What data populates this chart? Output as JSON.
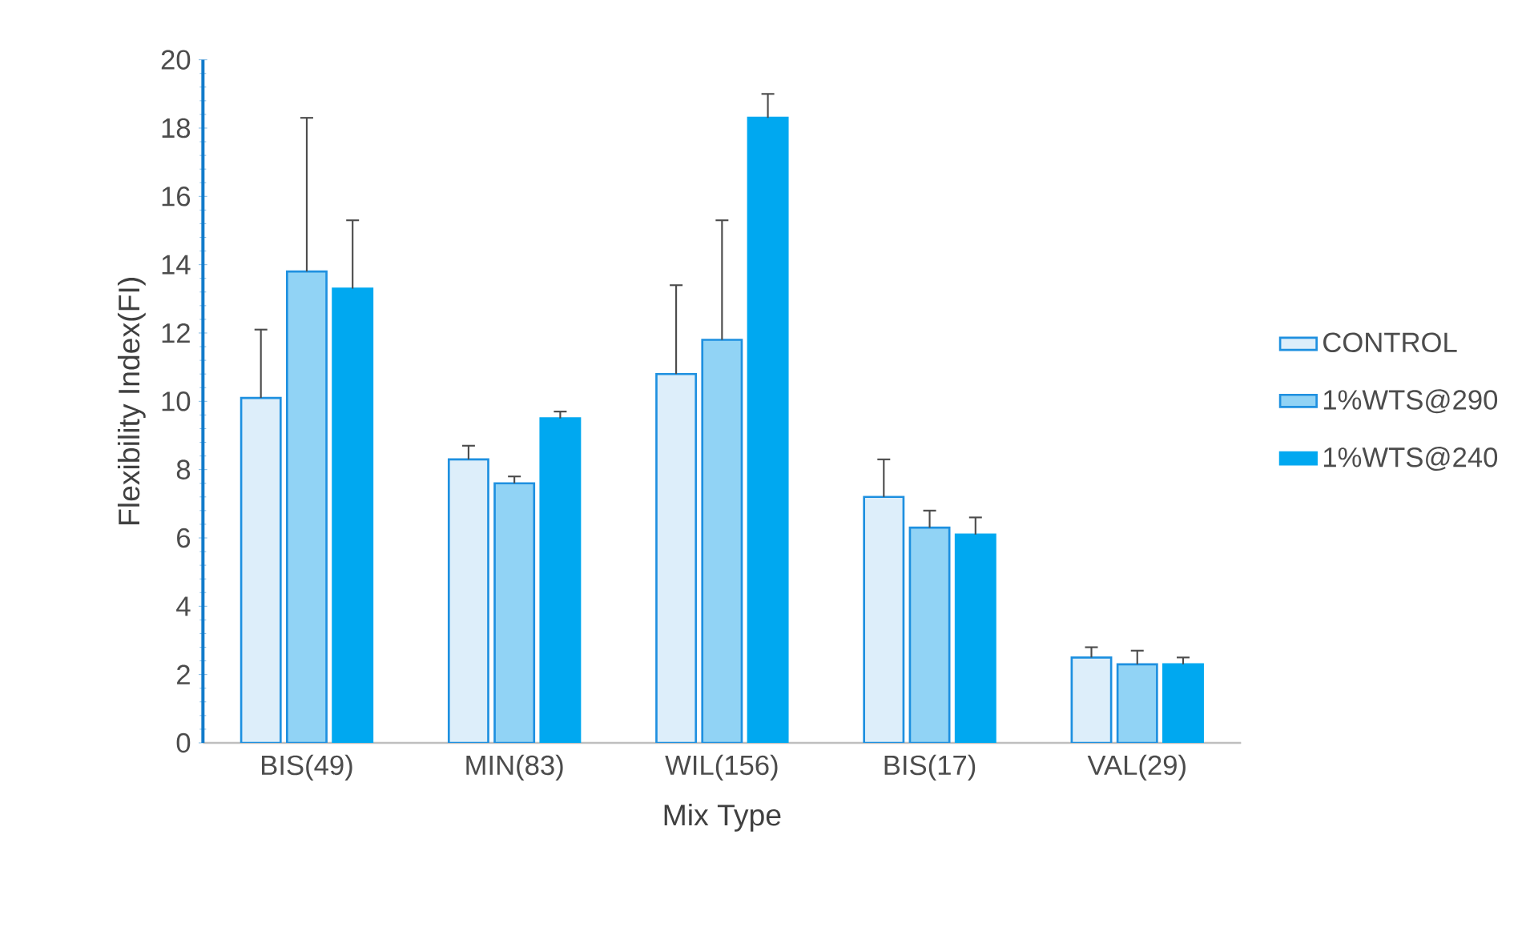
{
  "chart_data": {
    "type": "bar",
    "xlabel": "Mix Type",
    "ylabel": "Flexibility Index(FI)",
    "categories": [
      "BIS(49)",
      "MIN(83)",
      "WIL(156)",
      "BIS(17)",
      "VAL(29)"
    ],
    "series": [
      {
        "name": "CONTROL",
        "color": "#ddeefa",
        "values": [
          10.1,
          8.3,
          10.8,
          7.2,
          2.5
        ],
        "errors": [
          [
            10.1,
            12.1
          ],
          [
            8.3,
            8.7
          ],
          [
            10.8,
            13.4
          ],
          [
            7.2,
            8.3
          ],
          [
            2.5,
            2.8
          ]
        ]
      },
      {
        "name": "1%WTS@290",
        "color": "#91d3f5",
        "values": [
          13.8,
          7.6,
          11.8,
          6.3,
          2.3
        ],
        "errors": [
          [
            13.8,
            18.3
          ],
          [
            7.6,
            7.8
          ],
          [
            11.8,
            15.3
          ],
          [
            6.3,
            6.8
          ],
          [
            2.3,
            2.7
          ]
        ]
      },
      {
        "name": "1%WTS@240",
        "color": "#00a8f0",
        "values": [
          13.3,
          9.5,
          18.3,
          6.1,
          2.3
        ],
        "errors": [
          [
            13.3,
            15.3
          ],
          [
            9.5,
            9.7
          ],
          [
            18.3,
            19.0
          ],
          [
            6.1,
            6.6
          ],
          [
            2.3,
            2.5
          ]
        ]
      }
    ],
    "ylim": [
      0,
      20
    ],
    "yticks": [
      0,
      2,
      4,
      6,
      8,
      10,
      12,
      14,
      16,
      18,
      20
    ],
    "grid": false,
    "legend": "right"
  }
}
